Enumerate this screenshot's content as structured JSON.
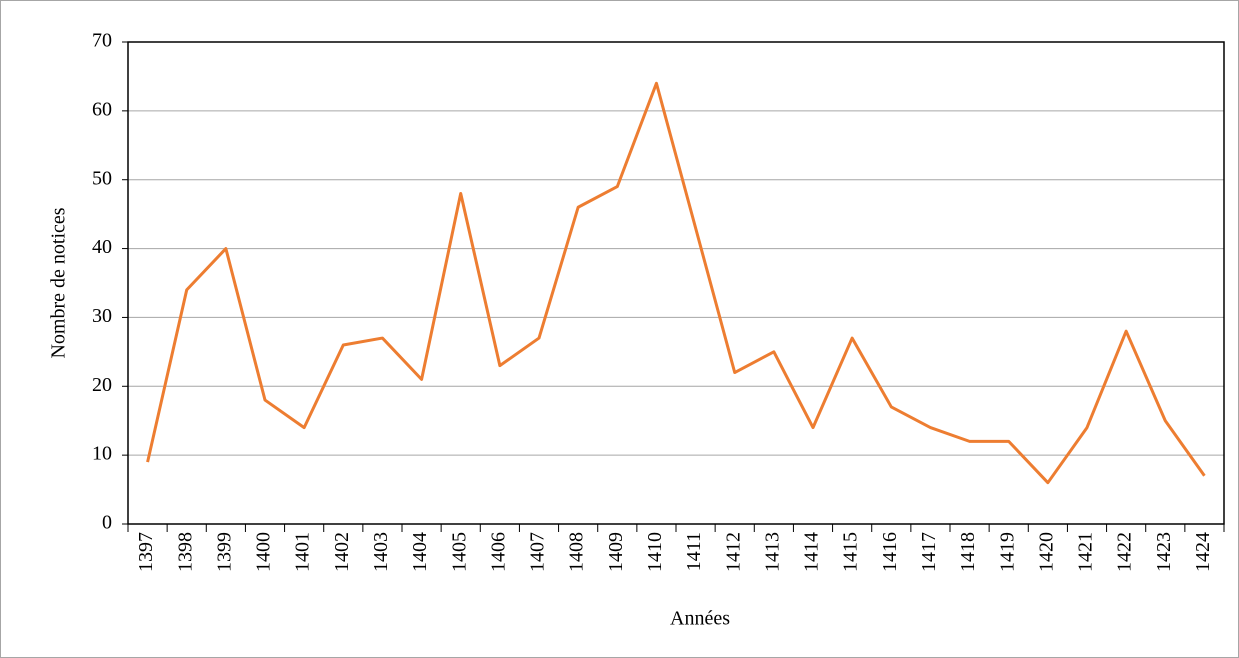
{
  "chart_data": {
    "type": "line",
    "x_label": "Années",
    "y_label": "Nombre de notices",
    "categories": [
      "1397",
      "1398",
      "1399",
      "1400",
      "1401",
      "1402",
      "1403",
      "1404",
      "1405",
      "1406",
      "1407",
      "1408",
      "1409",
      "1410",
      "1411",
      "1412",
      "1413",
      "1414",
      "1415",
      "1416",
      "1417",
      "1418",
      "1419",
      "1420",
      "1421",
      "1422",
      "1423",
      "1424"
    ],
    "series": [
      {
        "name": "Nombre de notices",
        "color": "#ed7d31",
        "values": [
          9,
          34,
          40,
          18,
          14,
          26,
          27,
          21,
          48,
          23,
          27,
          46,
          49,
          64,
          43,
          22,
          25,
          14,
          27,
          17,
          14,
          12,
          12,
          6,
          14,
          28,
          15,
          7
        ]
      }
    ],
    "ylim": [
      0,
      70
    ],
    "yticks": [
      0,
      10,
      20,
      30,
      40,
      50,
      60,
      70
    ],
    "grid": true
  }
}
